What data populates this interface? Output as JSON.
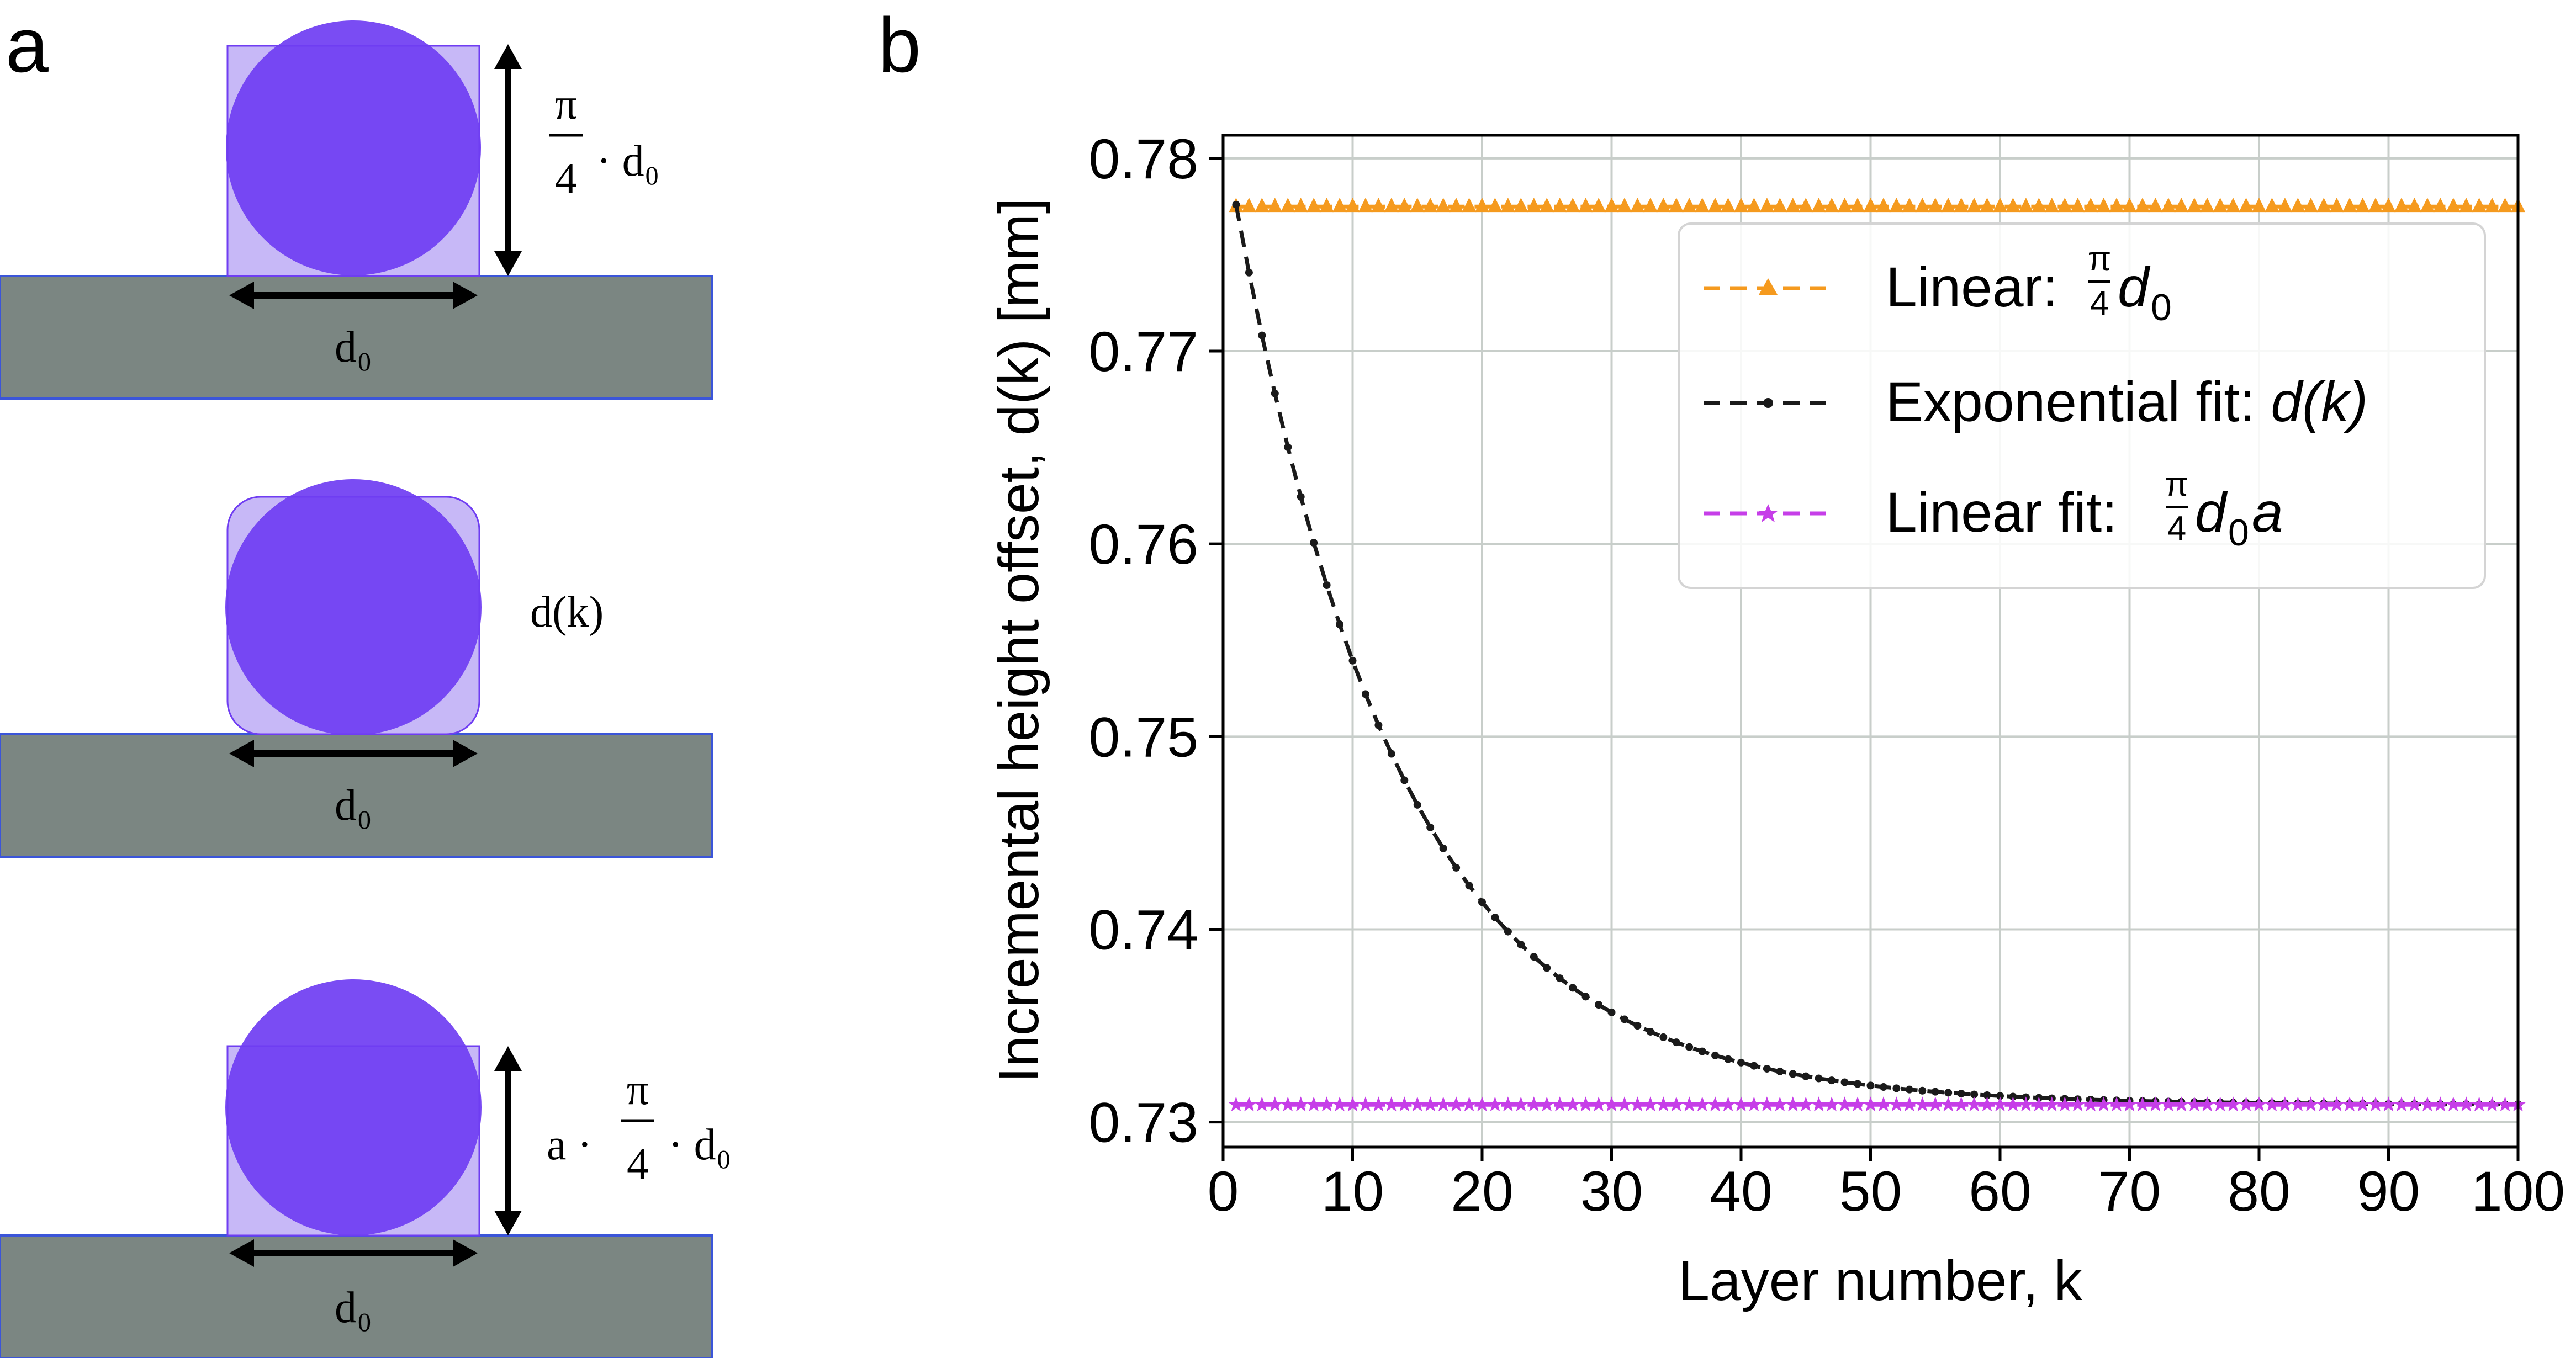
{
  "panels": {
    "a": {
      "letter": "a",
      "diagram_top": {
        "label_pi": "π",
        "label_frac_den": "4",
        "label_suffix": "· d₀",
        "width_label": "d₀"
      },
      "diagram_middle": {
        "label": "d(k)",
        "width_label": "d₀"
      },
      "diagram_bottom": {
        "label_prefix": "a ·",
        "label_pi": "π",
        "label_frac_den": "4",
        "label_suffix": "· d₀",
        "width_label": "d₀"
      }
    },
    "b": {
      "letter": "b"
    }
  },
  "colors": {
    "substrate": "#7b8682",
    "substrate_edge": "#3b55d9",
    "bead": "#6f3df2",
    "envelope": "#c7b8f7",
    "linear": "#f59a1e",
    "exponential": "#1a1a1a",
    "linear_fit": "#c63ee8",
    "grid": "#c8ceca"
  },
  "chart_data": {
    "type": "line",
    "xlabel": "Layer number, k",
    "ylabel": "Incremental height offset, d(k) [mm]",
    "xlim": [
      0,
      100
    ],
    "ylim": [
      0.7287,
      0.7812
    ],
    "xticks": [
      0,
      10,
      20,
      30,
      40,
      50,
      60,
      70,
      80,
      90,
      100
    ],
    "yticks": [
      0.73,
      0.74,
      0.75,
      0.76,
      0.77,
      0.78
    ],
    "ytick_labels": [
      "0.73",
      "0.74",
      "0.75",
      "0.76",
      "0.77",
      "0.78"
    ],
    "grid": true,
    "legend_position": "top-right",
    "series": [
      {
        "name": "Linear: π/4 d₀",
        "legend_text": "Linear: ",
        "legend_math": "d",
        "legend_sub": "0",
        "legend_after": "",
        "marker": "triangle",
        "style": "dashed",
        "x_range": [
          1,
          100
        ],
        "y_constant": 0.7775
      },
      {
        "name": "Exponential fit: d(k)",
        "legend_text": "Exponential fit: ",
        "legend_math": "d",
        "legend_paren": "(k)",
        "marker": "dot",
        "style": "dashed",
        "x_range": [
          1,
          100
        ],
        "model": {
          "type": "exponential",
          "asymptote": 0.7309,
          "amplitude": 0.0467,
          "rate": 0.0785
        }
      },
      {
        "name": "Linear fit: π/4 d₀a",
        "legend_text": "Linear fit: ",
        "legend_math": "d",
        "legend_sub": "0",
        "legend_after": "a",
        "marker": "star",
        "style": "dashed",
        "x_range": [
          1,
          100
        ],
        "y_constant": 0.7309
      }
    ]
  }
}
